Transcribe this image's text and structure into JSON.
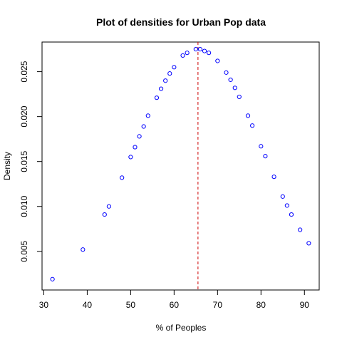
{
  "colors": {
    "points": "#0000ff",
    "reference_line": "#cd0000",
    "axes": "#000000",
    "background": "#ffffff"
  },
  "chart_data": {
    "type": "scatter",
    "title": "Plot of densities for Urban Pop data",
    "xlabel": "% of Peoples",
    "ylabel": "Density",
    "xlim": [
      29.6,
      93.4
    ],
    "ylim": [
      0.0007,
      0.0283
    ],
    "xticks": [
      30,
      40,
      50,
      60,
      70,
      80,
      90
    ],
    "yticks": [
      0.005,
      0.01,
      0.015,
      0.02,
      0.025
    ],
    "xtick_labels": [
      "30",
      "40",
      "50",
      "60",
      "70",
      "80",
      "90"
    ],
    "ytick_labels": [
      "0.005",
      "0.010",
      "0.015",
      "0.020",
      "0.025"
    ],
    "grid": false,
    "marker": "open-circle",
    "vline": {
      "x": 65.5,
      "style": "dashed"
    },
    "points": [
      {
        "x": 32,
        "y": 0.0019
      },
      {
        "x": 39,
        "y": 0.0052
      },
      {
        "x": 44,
        "y": 0.0091
      },
      {
        "x": 45,
        "y": 0.01
      },
      {
        "x": 48,
        "y": 0.0132
      },
      {
        "x": 50,
        "y": 0.0155
      },
      {
        "x": 51,
        "y": 0.0166
      },
      {
        "x": 52,
        "y": 0.0178
      },
      {
        "x": 53,
        "y": 0.0189
      },
      {
        "x": 54,
        "y": 0.0201
      },
      {
        "x": 56,
        "y": 0.0221
      },
      {
        "x": 57,
        "y": 0.0231
      },
      {
        "x": 58,
        "y": 0.024
      },
      {
        "x": 59,
        "y": 0.0248
      },
      {
        "x": 60,
        "y": 0.0255
      },
      {
        "x": 62,
        "y": 0.0268
      },
      {
        "x": 63,
        "y": 0.0271
      },
      {
        "x": 65,
        "y": 0.0275
      },
      {
        "x": 66,
        "y": 0.0275
      },
      {
        "x": 67,
        "y": 0.0273
      },
      {
        "x": 68,
        "y": 0.0271
      },
      {
        "x": 70,
        "y": 0.0262
      },
      {
        "x": 72,
        "y": 0.0249
      },
      {
        "x": 73,
        "y": 0.0241
      },
      {
        "x": 74,
        "y": 0.0232
      },
      {
        "x": 75,
        "y": 0.0222
      },
      {
        "x": 77,
        "y": 0.0201
      },
      {
        "x": 78,
        "y": 0.019
      },
      {
        "x": 80,
        "y": 0.0167
      },
      {
        "x": 81,
        "y": 0.0156
      },
      {
        "x": 83,
        "y": 0.0133
      },
      {
        "x": 85,
        "y": 0.0111
      },
      {
        "x": 86,
        "y": 0.0101
      },
      {
        "x": 87,
        "y": 0.0091
      },
      {
        "x": 89,
        "y": 0.0074
      },
      {
        "x": 91,
        "y": 0.0059
      }
    ]
  }
}
